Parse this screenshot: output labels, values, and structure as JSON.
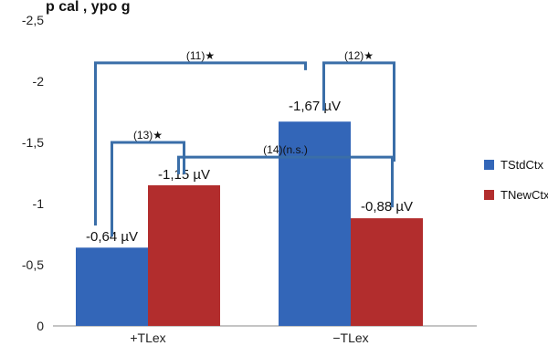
{
  "chart_data": {
    "type": "bar",
    "title": "p       cal      ,        ypo        g",
    "categories": [
      "+TLex",
      "−TLex"
    ],
    "y_reversed": true,
    "ylim": [
      0,
      -2.5
    ],
    "yticks": [
      0,
      -0.5,
      -1,
      -1.5,
      -2,
      -2.5
    ],
    "ytick_labels": [
      "0",
      "-0,5",
      "-1",
      "-1,5",
      "-2",
      "-2,5"
    ],
    "series": [
      {
        "name": "TStdCtx",
        "color": "#3366b8",
        "values": [
          -0.64,
          -1.67
        ]
      },
      {
        "name": "TNewCtx",
        "color": "#b22d2d",
        "values": [
          -1.15,
          -0.88
        ]
      }
    ],
    "data_labels": [
      [
        "-0,64 µV",
        "-1,67 µV"
      ],
      [
        "-1,15 µV",
        "-0,88 µV"
      ]
    ],
    "legend_position": "right",
    "annotations": [
      {
        "label": "(11)★",
        "from": {
          "category": 0,
          "series": 0
        },
        "to": {
          "category": 1,
          "series": 0
        },
        "level": -2.15
      },
      {
        "label": "(12)★",
        "from": {
          "category": 1,
          "series": 0
        },
        "to": {
          "category": 1,
          "series": 1
        },
        "level": -2.15
      },
      {
        "label": "(13)★",
        "from": {
          "category": 0,
          "series": 0
        },
        "to": {
          "category": 0,
          "series": 1
        },
        "level": -1.5
      },
      {
        "label": "(14)(n.s.)",
        "from": {
          "category": 0,
          "series": 1
        },
        "to": {
          "category": 1,
          "series": 1
        },
        "level": -1.38
      }
    ]
  }
}
